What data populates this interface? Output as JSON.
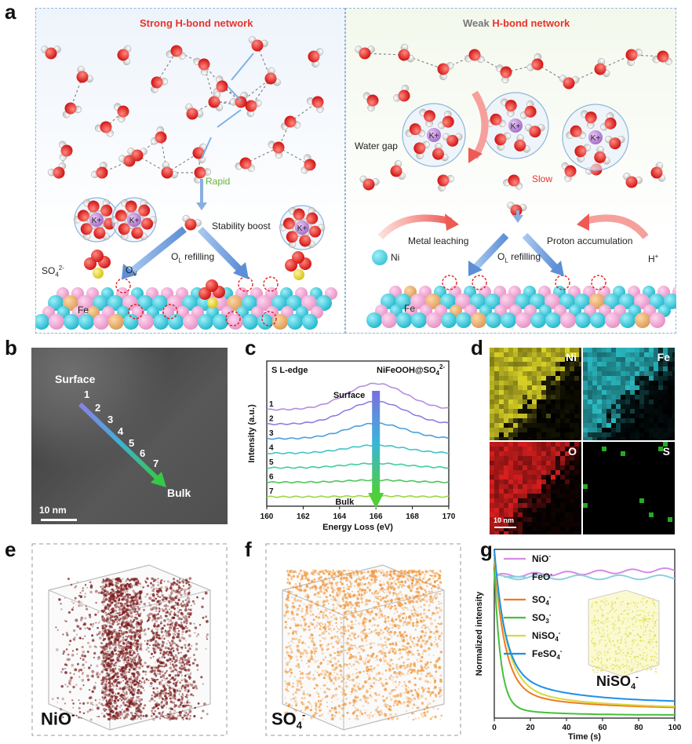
{
  "panel_labels": [
    "a",
    "b",
    "c",
    "d",
    "e",
    "f",
    "g"
  ],
  "panel_a": {
    "left_title": "Strong H-bond network",
    "right_title": "Weak H-bond network",
    "left": {
      "rapid": "Rapid",
      "stability": "Stability boost",
      "refill": "O",
      "refill_sub": "L",
      "refill_rest": " refilling",
      "sulfate": "SO",
      "sulfate_sub": "4",
      "sulfate_sup": "2-",
      "ov": "O",
      "ov_sub": "V",
      "fe": "Fe",
      "k": "K",
      "k_sup": "+"
    },
    "right": {
      "water_gap": "Water gap",
      "slow": "Slow",
      "metal_leaching": "Metal leaching",
      "proton_accumulation": "Proton accumulation",
      "ni": "Ni",
      "h": "H",
      "h_sup": "+",
      "refill": "O",
      "refill_sub": "L",
      "refill_rest": " refilling",
      "fe": "Fe",
      "k": "K",
      "k_sup": "+"
    }
  },
  "panel_b": {
    "surface": "Surface",
    "bulk": "Bulk",
    "points": [
      "1",
      "2",
      "3",
      "4",
      "5",
      "6",
      "7"
    ],
    "scale": "10 nm"
  },
  "panel_c": {
    "chart_data": {
      "type": "line",
      "title": "S L-edge",
      "sample": "NiFeOOH@SO",
      "sample_sub": "4",
      "sample_sup": "2-",
      "xlabel": "Energy Loss (eV)",
      "ylabel": "Intensity (a.u.)",
      "xlim": [
        160,
        170
      ],
      "xticks": [
        "160",
        "162",
        "164",
        "166",
        "168",
        "170"
      ],
      "arrow_top": "Surface",
      "arrow_bottom": "Bulk",
      "series": [
        {
          "name": "1",
          "color": "#b68de0",
          "offset": 6.0,
          "amp": 1.8
        },
        {
          "name": "2",
          "color": "#8f7fe0",
          "offset": 5.0,
          "amp": 1.55
        },
        {
          "name": "3",
          "color": "#4b9fe0",
          "offset": 4.0,
          "amp": 1.05
        },
        {
          "name": "4",
          "color": "#40c4c8",
          "offset": 3.0,
          "amp": 0.55
        },
        {
          "name": "5",
          "color": "#3fcf9a",
          "offset": 2.0,
          "amp": 0.3
        },
        {
          "name": "6",
          "color": "#4cc65a",
          "offset": 1.0,
          "amp": 0.15
        },
        {
          "name": "7",
          "color": "#9cd544",
          "offset": 0.0,
          "amp": 0.05
        }
      ]
    }
  },
  "panel_d": {
    "maps": [
      {
        "label": "Ni",
        "color": "#e6df2a"
      },
      {
        "label": "Fe",
        "color": "#2ec6cf"
      },
      {
        "label": "O",
        "color": "#e52020"
      },
      {
        "label": "S",
        "color": "#2fd42f"
      }
    ],
    "scale": "10 nm"
  },
  "panel_e": {
    "label": "NiO",
    "label_sup": "-",
    "color": "#7a1b1b"
  },
  "panel_f": {
    "label": "SO",
    "label_sub": "4",
    "label_sup": "-",
    "color": "#f0963a"
  },
  "panel_g": {
    "chart_data": {
      "type": "line",
      "xlabel": "Time (s)",
      "ylabel": "Normalized intensity",
      "xlim": [
        0,
        100
      ],
      "xticks": [
        "0",
        "20",
        "40",
        "60",
        "80",
        "100"
      ],
      "inset_label": "NiSO",
      "inset_sub": "4",
      "inset_sup": "-",
      "series": [
        {
          "name": "NiO",
          "sup": "-",
          "color": "#d58ce6"
        },
        {
          "name": "FeO",
          "sup": "-",
          "color": "#8fd0e0"
        },
        {
          "name": "SO",
          "sub": "4",
          "sup": "-",
          "color": "#f07a20"
        },
        {
          "name": "SO",
          "sub": "3",
          "sup": "-",
          "color": "#45c03a"
        },
        {
          "name": "NiSO",
          "sub": "4",
          "sup": "-",
          "color": "#d8d83a"
        },
        {
          "name": "FeSO",
          "sub": "4",
          "sup": "-",
          "color": "#1e8ee8"
        }
      ]
    }
  }
}
